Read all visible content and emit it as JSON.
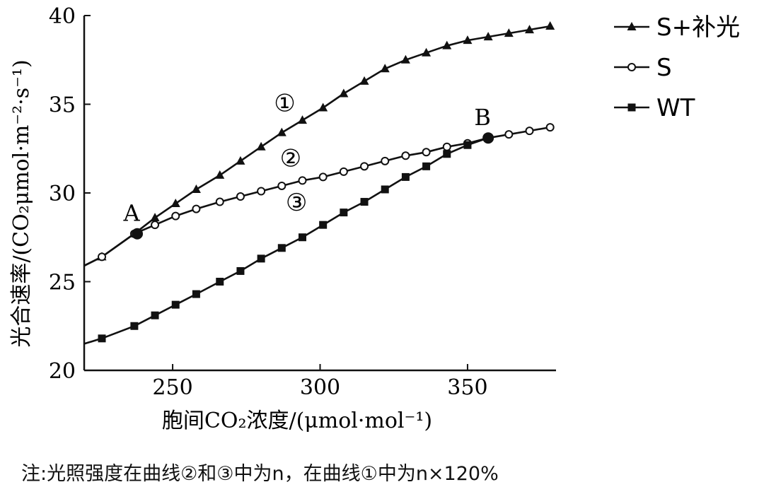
{
  "chart_data": {
    "type": "line",
    "xlabel": "胞间CO₂浓度/(μmol·mol⁻¹)",
    "ylabel": "光合速率/(CO₂μmol·m⁻²·s⁻¹)",
    "xlim": [
      220,
      380
    ],
    "ylim": [
      20,
      40
    ],
    "xticks": [
      250,
      300,
      350
    ],
    "yticks": [
      20,
      25,
      30,
      35,
      40
    ],
    "grid": false,
    "legend_position": "top-right",
    "series": [
      {
        "name": "S+补光",
        "marker": "triangle",
        "curve_label": "①",
        "x": [
          220,
          226,
          237,
          244,
          251,
          258,
          266,
          273,
          280,
          287,
          294,
          301,
          308,
          315,
          322,
          329,
          336,
          343,
          350,
          357,
          364,
          371,
          378
        ],
        "y": [
          25.9,
          26.4,
          27.7,
          28.6,
          29.4,
          30.2,
          31.0,
          31.8,
          32.6,
          33.4,
          34.1,
          34.8,
          35.6,
          36.3,
          37.0,
          37.5,
          37.9,
          38.3,
          38.6,
          38.8,
          39.0,
          39.2,
          39.4
        ]
      },
      {
        "name": "S",
        "marker": "open-circle",
        "curve_label": "②",
        "x": [
          220,
          226,
          237,
          244,
          251,
          258,
          266,
          273,
          280,
          287,
          294,
          301,
          308,
          315,
          322,
          329,
          336,
          343,
          350,
          357,
          364,
          371,
          378
        ],
        "y": [
          25.9,
          26.4,
          27.7,
          28.2,
          28.7,
          29.1,
          29.5,
          29.8,
          30.1,
          30.4,
          30.7,
          30.9,
          31.2,
          31.5,
          31.8,
          32.1,
          32.3,
          32.6,
          32.8,
          33.1,
          33.3,
          33.5,
          33.7
        ]
      },
      {
        "name": "WT",
        "marker": "filled-square",
        "curve_label": "③",
        "x": [
          220,
          226,
          237,
          244,
          251,
          258,
          266,
          273,
          280,
          287,
          294,
          301,
          308,
          315,
          322,
          329,
          336,
          343,
          350,
          357
        ],
        "y": [
          21.5,
          21.8,
          22.5,
          23.1,
          23.7,
          24.3,
          25.0,
          25.6,
          26.3,
          26.9,
          27.5,
          28.2,
          28.9,
          29.5,
          30.2,
          30.9,
          31.5,
          32.2,
          32.7,
          33.1
        ]
      }
    ],
    "points": [
      {
        "label": "A",
        "x": 238,
        "y": 27.7
      },
      {
        "label": "B",
        "x": 357,
        "y": 33.1
      }
    ]
  },
  "note": "注:光照强度在曲线②和③中为n，在曲线①中为n×120%"
}
